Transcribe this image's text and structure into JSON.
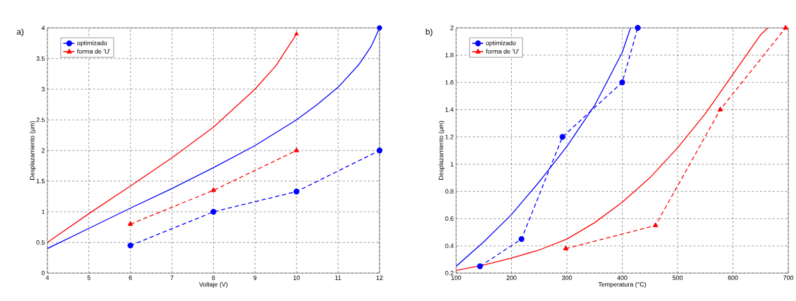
{
  "chart_data": [
    {
      "type": "line",
      "title": "a)",
      "xlabel": "Voltaje (V)",
      "ylabel": "Desplazamiento (µm)",
      "xlim": [
        4,
        12
      ],
      "ylim": [
        0,
        4
      ],
      "xticks": [
        4,
        5,
        6,
        7,
        8,
        9,
        10,
        11,
        12
      ],
      "yticks": [
        0,
        0.5,
        1,
        1.5,
        2,
        2.5,
        3,
        3.5,
        4
      ],
      "grid": true,
      "legend": "top left",
      "series": [
        {
          "color": "#0000ff",
          "marker": "none",
          "line_style": "solid",
          "x": [
            4,
            5,
            6,
            7,
            8,
            9,
            10,
            10.5,
            11,
            11.5,
            11.8,
            12
          ],
          "values": [
            0.4,
            0.73,
            1.06,
            1.38,
            1.72,
            2.08,
            2.5,
            2.75,
            3.03,
            3.4,
            3.7,
            4.0
          ]
        },
        {
          "color": "#ff0000",
          "marker": "none",
          "line_style": "solid",
          "x": [
            4,
            5,
            6,
            7,
            8,
            9,
            9.5,
            10
          ],
          "values": [
            0.5,
            0.97,
            1.42,
            1.88,
            2.38,
            3.0,
            3.38,
            3.9
          ]
        },
        {
          "type": "scatter",
          "color": "#0000ff",
          "marker": "circle",
          "x": [
            12
          ],
          "values": [
            4.0
          ]
        },
        {
          "type": "scatter",
          "color": "#ff0000",
          "marker": "triangle",
          "x": [
            10
          ],
          "values": [
            3.9
          ]
        },
        {
          "name": "optimizado",
          "color": "#0000ff",
          "marker": "circle",
          "line_style": "dashed",
          "x": [
            6,
            8,
            10,
            12
          ],
          "values": [
            0.45,
            1.0,
            1.33,
            2.0
          ]
        },
        {
          "name": "forma de 'U'",
          "color": "#ff0000",
          "marker": "triangle",
          "line_style": "dashed",
          "x": [
            6,
            8,
            10
          ],
          "values": [
            0.8,
            1.35,
            2.0
          ]
        }
      ]
    },
    {
      "type": "line",
      "title": "b)",
      "xlabel": "Temperatura (°C)",
      "ylabel": "Desplazamiento (µm)",
      "xlim": [
        100,
        700
      ],
      "ylim": [
        0.2,
        2
      ],
      "xticks": [
        100,
        200,
        300,
        400,
        500,
        600,
        700
      ],
      "yticks": [
        0.2,
        0.4,
        0.6,
        0.8,
        1,
        1.2,
        1.4,
        1.6,
        1.8,
        2
      ],
      "grid": true,
      "legend": "top left",
      "series": [
        {
          "color": "#0000ff",
          "marker": "none",
          "line_style": "solid",
          "x": [
            100,
            150,
            200,
            250,
            300,
            350,
            400,
            415
          ],
          "values": [
            0.25,
            0.43,
            0.63,
            0.87,
            1.13,
            1.43,
            1.82,
            2.0
          ]
        },
        {
          "color": "#ff0000",
          "marker": "none",
          "line_style": "solid",
          "x": [
            100,
            150,
            200,
            250,
            300,
            350,
            400,
            450,
            500,
            550,
            600,
            650,
            663
          ],
          "values": [
            0.22,
            0.26,
            0.31,
            0.37,
            0.45,
            0.57,
            0.72,
            0.9,
            1.12,
            1.37,
            1.66,
            1.95,
            2.0
          ]
        },
        {
          "name": "optimizado",
          "color": "#0000ff",
          "marker": "circle",
          "line_style": "dashed",
          "x": [
            143,
            218,
            292,
            400,
            428
          ],
          "values": [
            0.25,
            0.45,
            1.2,
            1.6,
            2.0
          ]
        },
        {
          "name": "forma de 'U'",
          "color": "#ff0000",
          "marker": "triangle",
          "line_style": "dashed",
          "x": [
            298,
            460,
            577,
            695
          ],
          "values": [
            0.38,
            0.55,
            1.4,
            2.0
          ]
        }
      ]
    }
  ]
}
